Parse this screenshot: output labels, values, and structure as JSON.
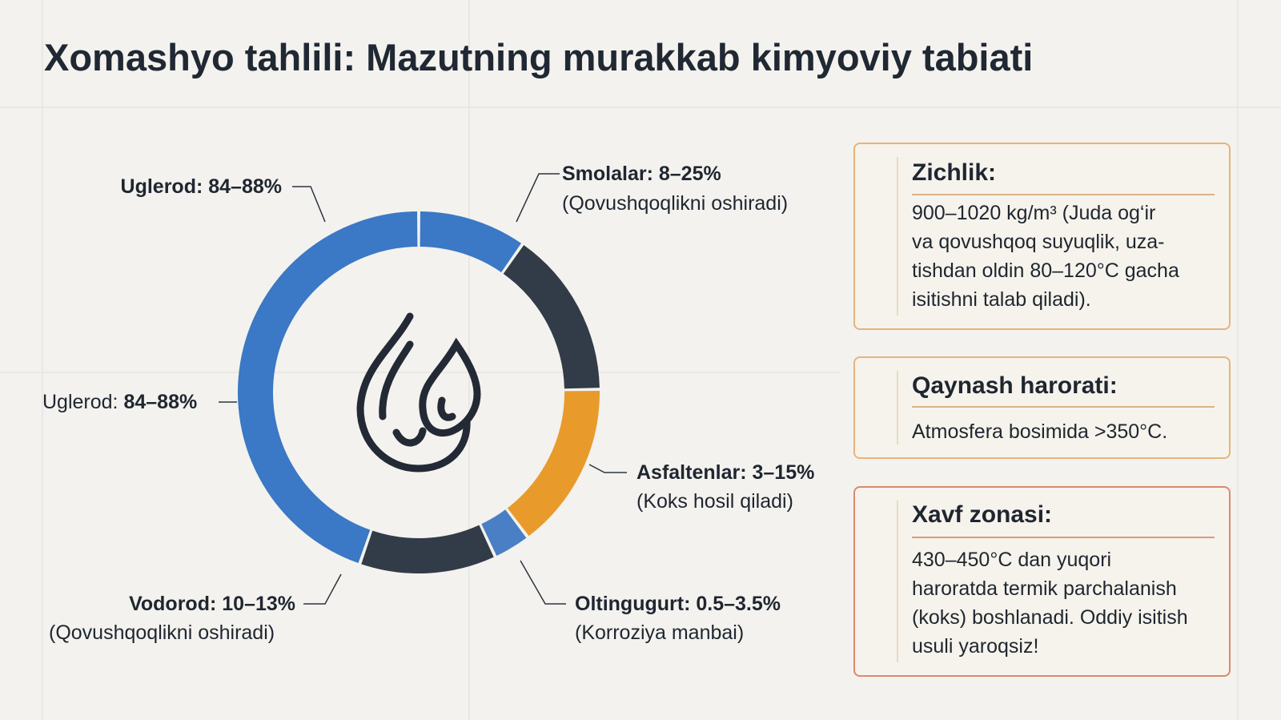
{
  "title": "Xomashyo tahlili: Mazutning murakkab kimyoviy tabiati",
  "donut": {
    "labels": [
      {
        "text": "Uglerod: 84–88%"
      },
      {
        "text": "Smolalar: 8–25%",
        "note": "(Qovushqoqlikni oshiradi)"
      },
      {
        "name": "Uglerod:",
        "text": "84–88%"
      },
      {
        "text": "Asfaltenlar: 3–15%",
        "note": "(Koks hosil qiladi)"
      },
      {
        "text": "Vodorod: 10–13%",
        "note": "(Qovushqoqlikni oshiradi)"
      },
      {
        "text": "Oltingugurt: 0.5–3.5%",
        "note": "(Korroziya manbai)"
      }
    ]
  },
  "cards": [
    {
      "title": "Zichlik:",
      "lines": [
        "900–1020 kg/m³ (Juda og‘ir",
        "va qovushqoq suyuqlik, uza-",
        "tishdan oldin 80–120°C gacha",
        "isitishni talab qiladi)."
      ]
    },
    {
      "title": "Qaynash harorati:",
      "lines": [
        "Atmosfera bosimida >350°C."
      ]
    },
    {
      "title": "Xavf zonasi:",
      "lines": [
        "430–450°C dan yuqori",
        "haroratda termik parchalanish",
        "(koks) boshlanadi. Oddiy isitish",
        "usuli yaroqsiz!"
      ]
    }
  ]
}
